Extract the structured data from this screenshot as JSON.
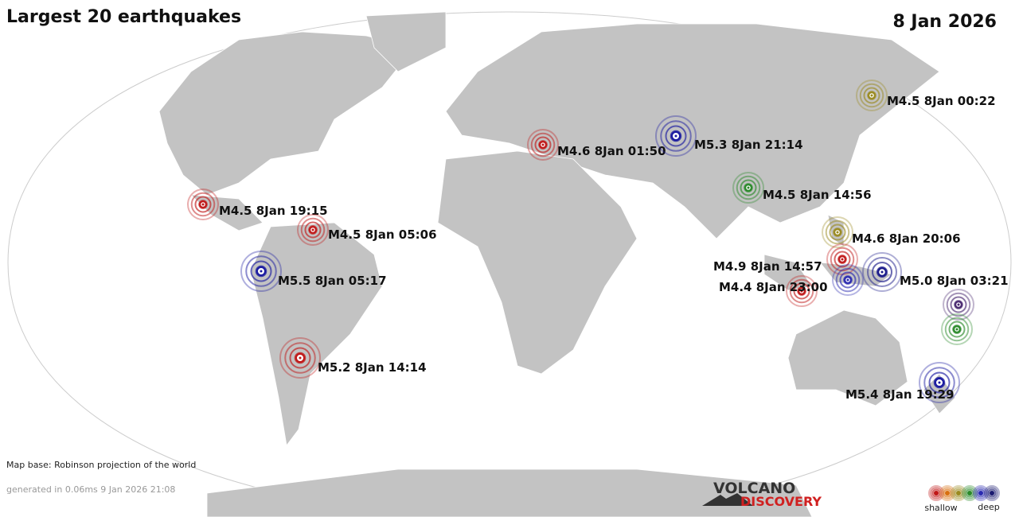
{
  "header": {
    "title": "Largest 20 earthquakes",
    "date": "8 Jan 2026"
  },
  "quakes": [
    {
      "label": "M4.5  8Jan 00:22",
      "color": "#9a8a20"
    },
    {
      "label": "M4.6  8Jan 01:50",
      "color": "#c01818"
    },
    {
      "label": "M5.3  8Jan 21:14",
      "color": "#1a1aa0"
    },
    {
      "label": "M4.5  8Jan 14:56",
      "color": "#2a8a2a"
    },
    {
      "label": "M4.5  8Jan 19:15",
      "color": "#c01818"
    },
    {
      "label": "M4.5  8Jan 05:06",
      "color": "#c01818"
    },
    {
      "label": "M4.6  8Jan 20:06",
      "color": "#9a8a20"
    },
    {
      "label": "M5.5  8Jan 05:17",
      "color": "#1a1aa0"
    },
    {
      "label": "M4.9  8Jan 14:57",
      "color": "#c01818"
    },
    {
      "label": "M5.0  8Jan 03:21",
      "color": "#1a1a8a"
    },
    {
      "color": "#2a2ab0"
    },
    {
      "label": "M4.4  8Jan 23:00",
      "color": "#c01818"
    },
    {
      "color": "#4a2a70"
    },
    {
      "color": "#2a8a2a"
    },
    {
      "label": "M5.2  8Jan 14:14",
      "color": "#c01818"
    },
    {
      "label": "M5.4  8Jan 19:29",
      "color": "#1a1aa0"
    }
  ],
  "footer": {
    "map_base": "Map base: Robinson projection of the world",
    "generated": "generated in 0.06ms  9 Jan 2026 21:08"
  },
  "logo": {
    "line1": "VOLCANO",
    "line2": "DISCOVERY"
  },
  "legend": {
    "colors": [
      "#c01818",
      "#d87010",
      "#9a8a20",
      "#2a8a2a",
      "#2a2ab0",
      "#1a1a70"
    ],
    "shallow": "shallow",
    "deep": "deep"
  }
}
